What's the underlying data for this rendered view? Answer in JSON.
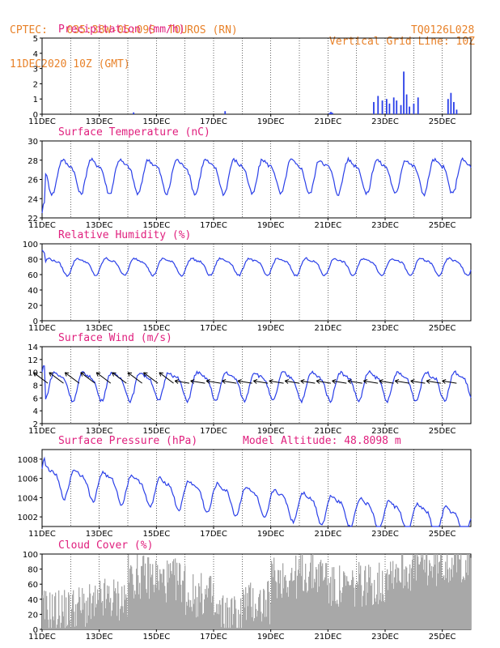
{
  "header": {
    "left_line1": "CPTEC:   035:38W-05:09S  TOUROS (RN)",
    "left_line2": "11DEC2020 10Z (GMT)",
    "right_line1": "Vertical Grid Line: 10Z",
    "right_line2": "TQ0126L028"
  },
  "x_tick_labels": [
    "11DEC",
    "13DEC",
    "15DEC",
    "17DEC",
    "19DEC",
    "21DEC",
    "23DEC",
    "25DEC"
  ],
  "colors": {
    "header": "#e8822a",
    "title": "#e0207e",
    "series": "#2a3fe8",
    "cloud": "#a8a8a8"
  },
  "chart_data": [
    {
      "type": "bar",
      "title": "Precipitation (mm/h)",
      "ylim": [
        0,
        5
      ],
      "yticks": [
        "0",
        "1",
        "2",
        "3",
        "4",
        "5"
      ],
      "x_range_days": [
        0,
        15
      ],
      "series": [
        {
          "events": [
            [
              3.2,
              0.12
            ],
            [
              6.4,
              0.2
            ],
            [
              10.05,
              0.08
            ],
            [
              10.1,
              0.15
            ],
            [
              10.15,
              0.1
            ],
            [
              11.6,
              0.8
            ],
            [
              11.75,
              1.2
            ],
            [
              11.9,
              0.9
            ],
            [
              12.05,
              1.0
            ],
            [
              12.15,
              0.7
            ],
            [
              12.3,
              1.1
            ],
            [
              12.4,
              0.9
            ],
            [
              12.55,
              0.6
            ],
            [
              12.65,
              2.8
            ],
            [
              12.75,
              1.3
            ],
            [
              12.85,
              0.5
            ],
            [
              13.0,
              0.7
            ],
            [
              13.15,
              1.1
            ],
            [
              14.2,
              1.0
            ],
            [
              14.3,
              1.4
            ],
            [
              14.4,
              0.8
            ],
            [
              14.5,
              0.3
            ]
          ]
        }
      ]
    },
    {
      "type": "line",
      "title": "Surface Temperature (nC)",
      "ylim": [
        22,
        30
      ],
      "yticks": [
        "22",
        "24",
        "26",
        "28",
        "30"
      ],
      "series": [
        {
          "base": 26.6,
          "amp": 1.6,
          "phase": 0.58,
          "start_values": [
            22.5,
            23.4,
            23.6
          ]
        }
      ]
    },
    {
      "type": "line",
      "title": "Relative Humidity (%)",
      "ylim": [
        0,
        100
      ],
      "yticks": [
        "0",
        "20",
        "40",
        "60",
        "80",
        "100"
      ],
      "series": [
        {
          "base": 72,
          "amp": 10,
          "phase": 0.1,
          "start_values": [
            92,
            90,
            88
          ]
        }
      ]
    },
    {
      "type": "line",
      "title": "Surface Wind (m/s)",
      "ylim": [
        2,
        14
      ],
      "yticks": [
        "2",
        "4",
        "6",
        "8",
        "10",
        "12",
        "14"
      ],
      "series": [
        {
          "base": 8.2,
          "amp": 2.0,
          "phase": 0.3,
          "start_values": [
            10,
            11,
            11
          ]
        }
      ]
    },
    {
      "type": "line",
      "title": "Surface Pressure (hPa)",
      "annotation": "Model Altitude: 48.8098  m",
      "ylim": [
        1001,
        1009
      ],
      "yticks": [
        "1002",
        "1004",
        "1006",
        "1008"
      ],
      "series": [
        {
          "base": 1006,
          "amp": 1.4,
          "trend": -0.3,
          "start_values": [
            1007,
            1007.8,
            1008.1
          ]
        }
      ]
    },
    {
      "type": "area",
      "title": "Cloud Cover (%)",
      "ylim": [
        0,
        100
      ],
      "yticks": [
        "0",
        "20",
        "40",
        "60",
        "80",
        "100"
      ],
      "series": [
        {
          "mean": [
            25,
            30,
            40,
            70,
            65,
            45,
            20,
            35,
            70,
            75,
            55,
            60,
            80,
            85,
            90,
            90
          ]
        }
      ]
    }
  ]
}
